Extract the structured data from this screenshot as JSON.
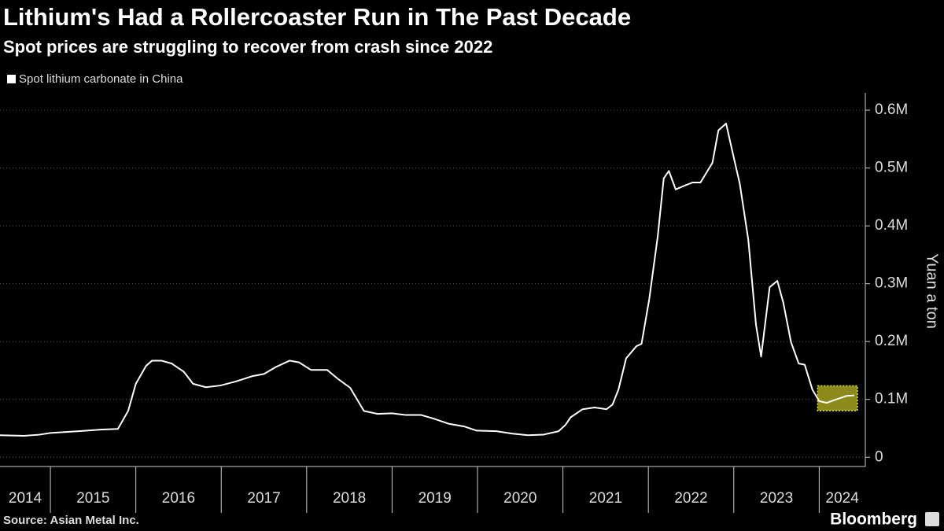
{
  "chart_data": {
    "type": "line",
    "title": "Lithium's Had a Rollercoaster Run in The Past Decade",
    "subtitle": "Spot prices are struggling to recover from crash since 2022",
    "y_axis_label": "Yuan a ton",
    "source": "Source: Asian Metal Inc.",
    "brand": "Bloomberg",
    "x": [
      2014.41,
      2014.69,
      2014.87,
      2015.0,
      2015.33,
      2015.61,
      2015.79,
      2015.91,
      2016.0,
      2016.12,
      2016.19,
      2016.3,
      2016.42,
      2016.56,
      2016.67,
      2016.82,
      2016.99,
      2017.17,
      2017.36,
      2017.5,
      2017.64,
      2017.8,
      2017.91,
      2018.05,
      2018.24,
      2018.37,
      2018.51,
      2018.67,
      2018.83,
      2019.0,
      2019.16,
      2019.34,
      2019.48,
      2019.66,
      2019.85,
      2019.99,
      2020.22,
      2020.4,
      2020.59,
      2020.77,
      2020.95,
      2021.03,
      2021.09,
      2021.23,
      2021.37,
      2021.51,
      2021.58,
      2021.65,
      2021.74,
      2021.86,
      2021.92,
      2022.01,
      2022.11,
      2022.18,
      2022.24,
      2022.32,
      2022.43,
      2022.52,
      2022.61,
      2022.75,
      2022.82,
      2022.91,
      2023.0,
      2023.07,
      2023.17,
      2023.26,
      2023.32,
      2023.42,
      2023.51,
      2023.58,
      2023.67,
      2023.76,
      2023.83,
      2023.92,
      2024.0,
      2024.09,
      2024.18,
      2024.32,
      2024.41
    ],
    "series": [
      {
        "name": "Spot lithium carbonate in China",
        "color": "#ffffff",
        "values": [
          38000,
          37000,
          39000,
          42000,
          45000,
          48000,
          49000,
          80000,
          127000,
          158000,
          167000,
          167000,
          162000,
          148000,
          127000,
          121000,
          124000,
          131000,
          140000,
          144000,
          156000,
          167000,
          164000,
          151000,
          151000,
          135000,
          120000,
          80000,
          75000,
          76000,
          73000,
          73000,
          67000,
          58000,
          53000,
          46000,
          45000,
          41000,
          38000,
          39000,
          45000,
          56000,
          69000,
          83000,
          86000,
          83000,
          91000,
          117000,
          171000,
          192000,
          196000,
          273000,
          382000,
          482000,
          495000,
          463000,
          470000,
          475000,
          475000,
          509000,
          565000,
          577000,
          518000,
          473000,
          376000,
          229000,
          174000,
          294000,
          305000,
          267000,
          199000,
          162000,
          160000,
          117000,
          97000,
          94000,
          99000,
          106000,
          107000
        ]
      }
    ],
    "highlight_color": "#8b8a1a",
    "xlim": [
      2014.41,
      2024.54
    ],
    "xticks": [
      2014,
      2015,
      2016,
      2017,
      2018,
      2019,
      2020,
      2021,
      2022,
      2023,
      2024
    ],
    "ylim": [
      -16000,
      630000
    ],
    "yticks": [
      {
        "value": 0,
        "label": "0"
      },
      {
        "value": 100000,
        "label": "0.1M"
      },
      {
        "value": 200000,
        "label": "0.2M"
      },
      {
        "value": 300000,
        "label": "0.3M"
      },
      {
        "value": 400000,
        "label": "0.4M"
      },
      {
        "value": 500000,
        "label": "0.5M"
      },
      {
        "value": 600000,
        "label": "0.6M"
      }
    ],
    "grid": true
  }
}
